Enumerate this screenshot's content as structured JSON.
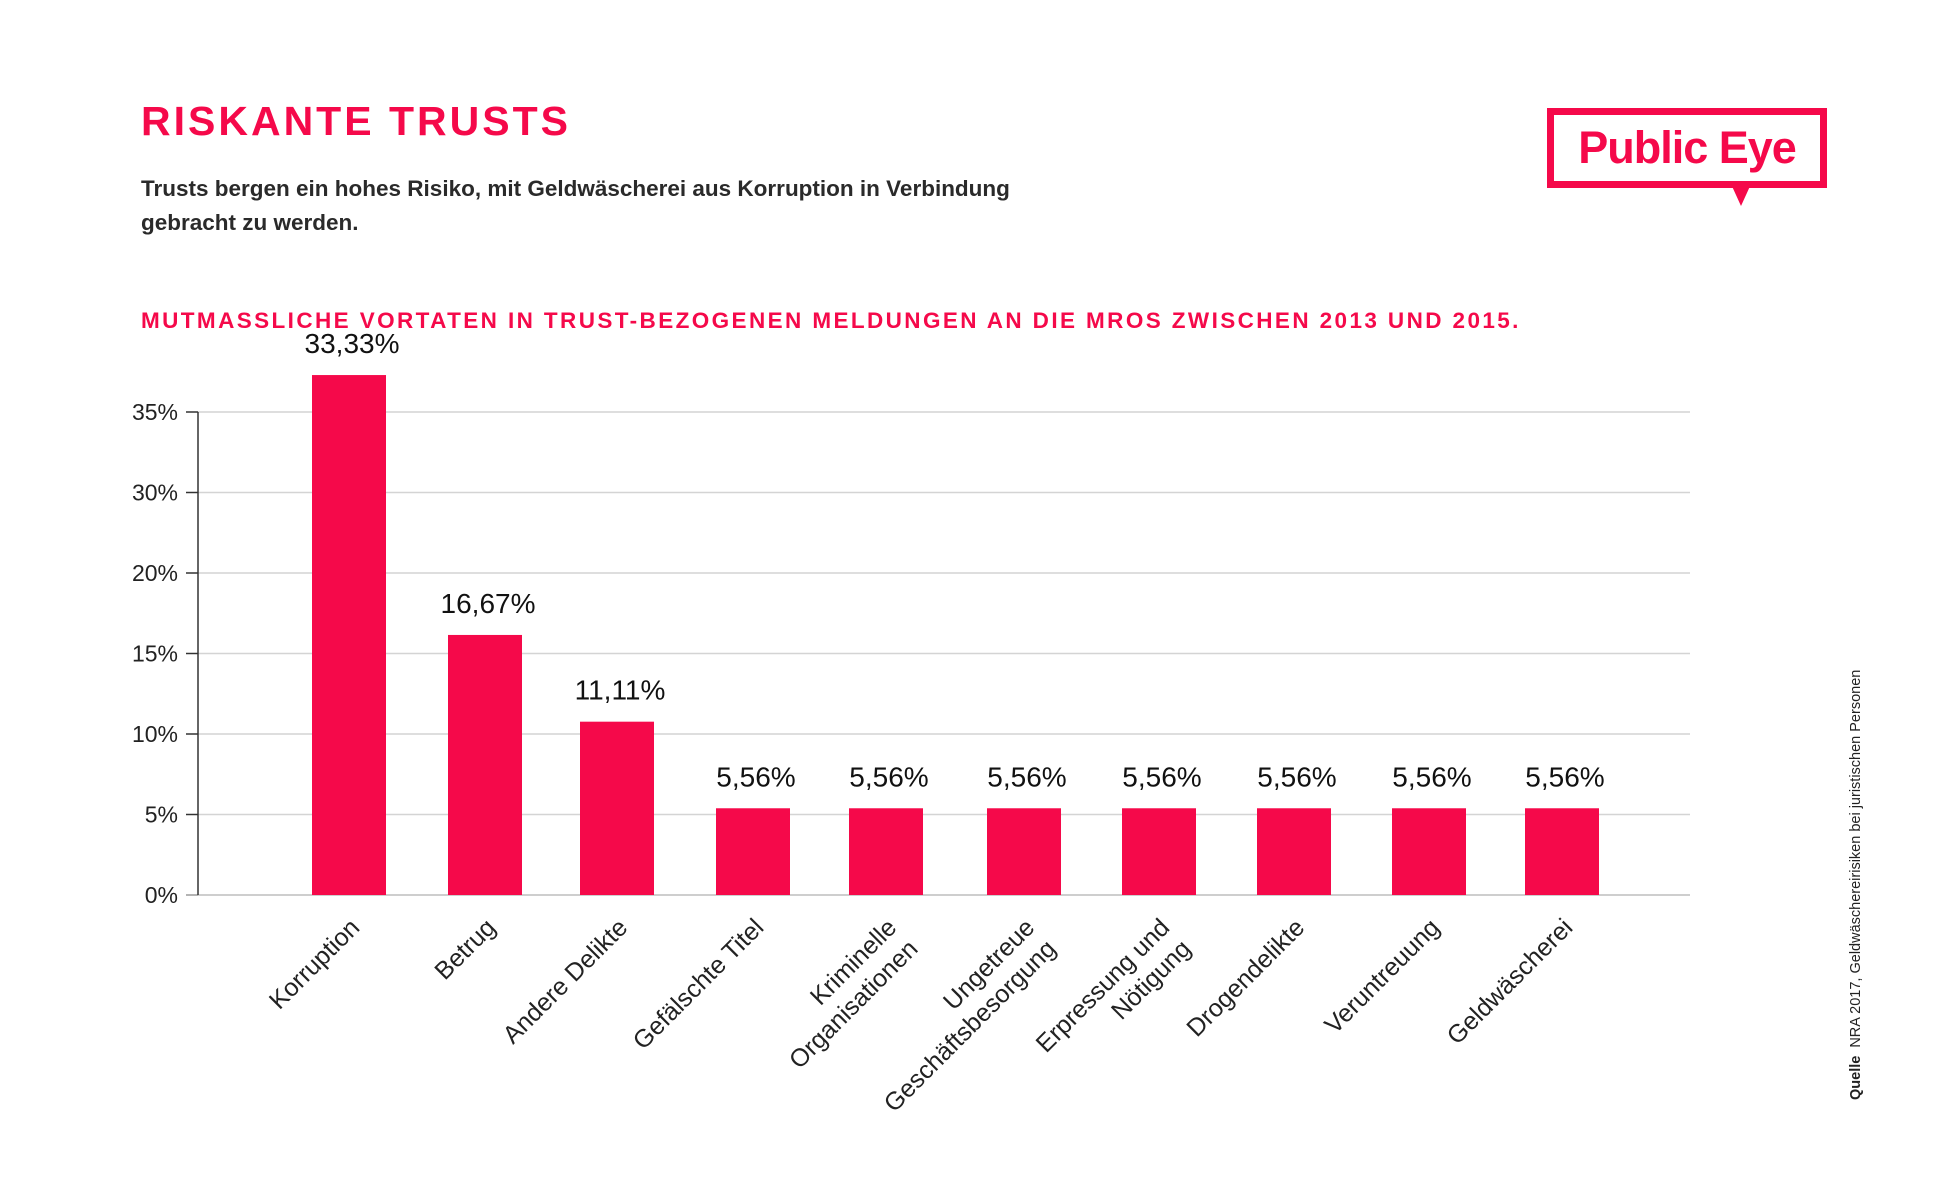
{
  "header": {
    "title": "RISKANTE TRUSTS",
    "subtitle": "Trusts bergen ein hohes Risiko, mit Geldwäscherei aus Korruption in Verbindung gebracht zu werden."
  },
  "logo": {
    "text": "Public Eye"
  },
  "source": {
    "label": "Quelle",
    "text": "NRA 2017, Geldwäschereirisiken bei juristischen Personen"
  },
  "colors": {
    "accent": "#f5094a",
    "text": "#222222",
    "grid": "#d4d4d4"
  },
  "chart_data": {
    "type": "bar",
    "title": "MUTMASSLICHE VORTATEN IN TRUST-BEZOGENEN MELDUNGEN AN DIE MROS ZWISCHEN 2013 UND 2015.",
    "ytick_labels": [
      "0%",
      "5%",
      "10%",
      "15%",
      "20%",
      "30%",
      "35%"
    ],
    "categories": [
      [
        "Korruption"
      ],
      [
        "Betrug"
      ],
      [
        "Andere Delikte"
      ],
      [
        "Gefälschte Titel"
      ],
      [
        "Kriminelle",
        "Organisationen"
      ],
      [
        "Ungetreue",
        "Geschäftsbesorgung"
      ],
      [
        "Erpressung und",
        "Nötigung"
      ],
      [
        "Drogendelikte"
      ],
      [
        "Veruntreuung"
      ],
      [
        "Geldwäscherei"
      ]
    ],
    "values": [
      33.33,
      16.67,
      11.11,
      5.56,
      5.56,
      5.56,
      5.56,
      5.56,
      5.56,
      5.56
    ],
    "value_labels": [
      "33,33%",
      "16,67%",
      "11,11%",
      "5,56%",
      "5,56%",
      "5,56%",
      "5,56%",
      "5,56%",
      "5,56%",
      "5,56%"
    ],
    "grid": true,
    "legend": "none"
  }
}
